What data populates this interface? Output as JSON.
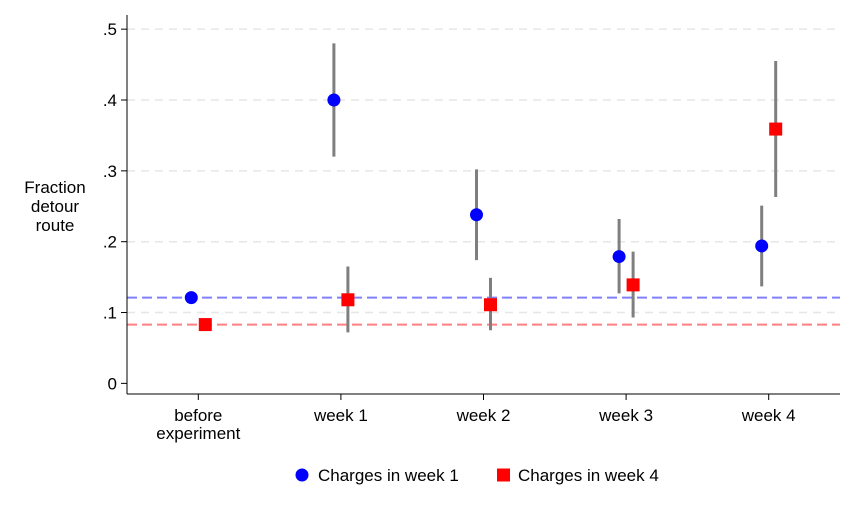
{
  "chart_data": {
    "type": "scatter",
    "ylabel": [
      "Fraction",
      "detour",
      "route"
    ],
    "categories": [
      [
        "before",
        "experiment"
      ],
      [
        "week 1"
      ],
      [
        "week 2"
      ],
      [
        "week 3"
      ],
      [
        "week 4"
      ]
    ],
    "ylim": [
      -0.015,
      0.52
    ],
    "yticks": [
      0,
      0.1,
      0.2,
      0.3,
      0.4,
      0.5
    ],
    "ytick_labels": [
      "0",
      ".1",
      ".2",
      ".3",
      ".4",
      ".5"
    ],
    "grid": "horizontal dashed",
    "legend_position": "bottom",
    "series": [
      {
        "name": "Charges in week 1",
        "marker": "circle",
        "color": "#0000ff",
        "values": [
          0.121,
          0.4,
          0.238,
          0.179,
          0.194
        ],
        "ci_low": [
          null,
          0.32,
          0.174,
          0.127,
          0.137
        ],
        "ci_high": [
          null,
          0.48,
          0.302,
          0.232,
          0.251
        ]
      },
      {
        "name": "Charges in week 4",
        "marker": "square",
        "color": "#ff0000",
        "values": [
          0.083,
          0.118,
          0.111,
          0.139,
          0.359
        ],
        "ci_low": [
          null,
          0.072,
          0.075,
          0.093,
          0.263
        ],
        "ci_high": [
          null,
          0.165,
          0.149,
          0.186,
          0.455
        ]
      }
    ],
    "reference_lines": [
      {
        "value": 0.121,
        "color": "#8080ff",
        "style": "dashed"
      },
      {
        "value": 0.083,
        "color": "#ff8080",
        "style": "dashed"
      }
    ],
    "errorbar_color": "#7f7f7f"
  }
}
